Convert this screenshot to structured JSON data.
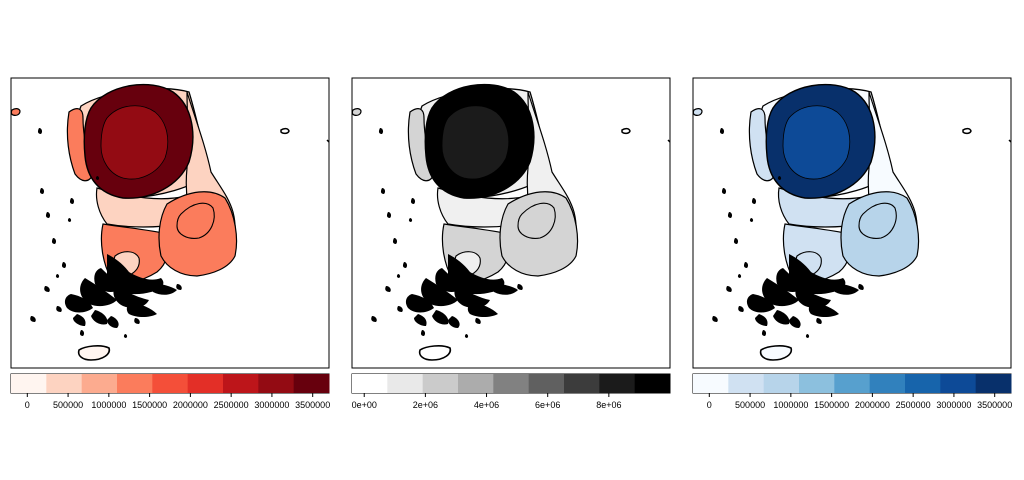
{
  "panels": [
    {
      "id": "reds",
      "legend_colors": [
        "#fff5f0",
        "#fdd3c1",
        "#fcab8f",
        "#fb7c5c",
        "#f44f39",
        "#e32f27",
        "#bd151a",
        "#930b13",
        "#67000d"
      ],
      "tick_labels": [
        "0",
        "500000",
        "1000000",
        "1500000",
        "2000000",
        "2500000",
        "3000000",
        "3500000"
      ],
      "tick_values": [
        0,
        500000,
        1000000,
        1500000,
        2000000,
        2500000,
        3000000,
        3500000
      ],
      "legend_range": [
        -200000,
        3700000
      ],
      "region_colors": {
        "outer_ring": "#67000d",
        "core": "#930b13",
        "north_strip": "#fdd3c1",
        "northwest_coast": "#fb7c5c",
        "east": "#fdd3c1",
        "mid_bar": "#fdd3c1",
        "southeast": "#fb7c5c",
        "southwest": "#fb7c5c",
        "inner_blob": "#fb7c5c",
        "small_lobe": "#fdd3c1",
        "jeju": "#fff5f0",
        "tiny_island": "#fb7c5c",
        "dots": "#000000"
      }
    },
    {
      "id": "greys",
      "legend_colors": [
        "#ffffff",
        "#e9e9e9",
        "#cbcbcb",
        "#acacac",
        "#818181",
        "#606060",
        "#3c3c3c",
        "#1b1b1b",
        "#000000"
      ],
      "tick_labels": [
        "0e+00",
        "2e+06",
        "4e+06",
        "6e+06",
        "8e+06"
      ],
      "tick_values": [
        0,
        2000000,
        4000000,
        6000000,
        8000000
      ],
      "legend_range": [
        -400000,
        10000000
      ],
      "region_colors": {
        "outer_ring": "#000000",
        "core": "#1b1b1b",
        "north_strip": "#f0f0f0",
        "northwest_coast": "#d4d4d4",
        "east": "#f0f0f0",
        "mid_bar": "#f0f0f0",
        "southeast": "#d4d4d4",
        "southwest": "#d4d4d4",
        "inner_blob": "#d4d4d4",
        "small_lobe": "#f0f0f0",
        "jeju": "#ffffff",
        "tiny_island": "#d4d4d4",
        "dots": "#000000"
      }
    },
    {
      "id": "blues",
      "legend_colors": [
        "#f7fbff",
        "#d0e1f2",
        "#b7d4ea",
        "#8cc0de",
        "#57a0ce",
        "#3181bd",
        "#1764ab",
        "#0d4a97",
        "#08306b"
      ],
      "tick_labels": [
        "0",
        "500000",
        "1000000",
        "1500000",
        "2000000",
        "2500000",
        "3000000",
        "3500000"
      ],
      "tick_values": [
        0,
        500000,
        1000000,
        1500000,
        2000000,
        2500000,
        3000000,
        3500000
      ],
      "legend_range": [
        -200000,
        3700000
      ],
      "region_colors": {
        "outer_ring": "#08306b",
        "core": "#0d4a97",
        "north_strip": "#f7fbff",
        "northwest_coast": "#d0e1f2",
        "east": "#f7fbff",
        "mid_bar": "#d0e1f2",
        "southeast": "#b7d4ea",
        "southwest": "#d0e1f2",
        "inner_blob": "#b7d4ea",
        "small_lobe": "#d0e1f2",
        "jeju": "#f7fbff",
        "tiny_island": "#d0e1f2",
        "dots": "#000000"
      }
    }
  ]
}
